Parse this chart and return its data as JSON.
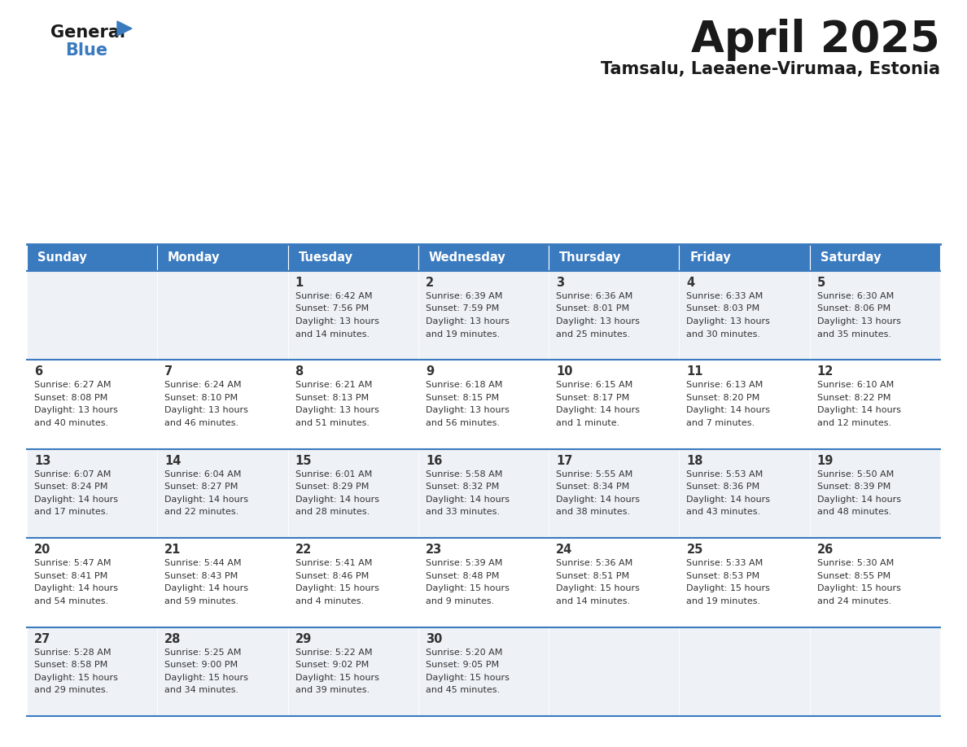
{
  "title": "April 2025",
  "subtitle": "Tamsalu, Laeaene-Virumaa, Estonia",
  "days_of_week": [
    "Sunday",
    "Monday",
    "Tuesday",
    "Wednesday",
    "Thursday",
    "Friday",
    "Saturday"
  ],
  "header_bg_color": "#3a7abf",
  "header_text_color": "#ffffff",
  "row_bg_color_odd": "#eef2f7",
  "row_bg_color_even": "#ffffff",
  "cell_border_color": "#3a7abf",
  "title_color": "#1a1a1a",
  "subtitle_color": "#1a1a1a",
  "text_color": "#333333",
  "logo_general_color": "#1a1a1a",
  "logo_blue_color": "#3a7abf",
  "calendar_data": [
    [
      {
        "day": "",
        "info": ""
      },
      {
        "day": "",
        "info": ""
      },
      {
        "day": "1",
        "info": "Sunrise: 6:42 AM\nSunset: 7:56 PM\nDaylight: 13 hours\nand 14 minutes."
      },
      {
        "day": "2",
        "info": "Sunrise: 6:39 AM\nSunset: 7:59 PM\nDaylight: 13 hours\nand 19 minutes."
      },
      {
        "day": "3",
        "info": "Sunrise: 6:36 AM\nSunset: 8:01 PM\nDaylight: 13 hours\nand 25 minutes."
      },
      {
        "day": "4",
        "info": "Sunrise: 6:33 AM\nSunset: 8:03 PM\nDaylight: 13 hours\nand 30 minutes."
      },
      {
        "day": "5",
        "info": "Sunrise: 6:30 AM\nSunset: 8:06 PM\nDaylight: 13 hours\nand 35 minutes."
      }
    ],
    [
      {
        "day": "6",
        "info": "Sunrise: 6:27 AM\nSunset: 8:08 PM\nDaylight: 13 hours\nand 40 minutes."
      },
      {
        "day": "7",
        "info": "Sunrise: 6:24 AM\nSunset: 8:10 PM\nDaylight: 13 hours\nand 46 minutes."
      },
      {
        "day": "8",
        "info": "Sunrise: 6:21 AM\nSunset: 8:13 PM\nDaylight: 13 hours\nand 51 minutes."
      },
      {
        "day": "9",
        "info": "Sunrise: 6:18 AM\nSunset: 8:15 PM\nDaylight: 13 hours\nand 56 minutes."
      },
      {
        "day": "10",
        "info": "Sunrise: 6:15 AM\nSunset: 8:17 PM\nDaylight: 14 hours\nand 1 minute."
      },
      {
        "day": "11",
        "info": "Sunrise: 6:13 AM\nSunset: 8:20 PM\nDaylight: 14 hours\nand 7 minutes."
      },
      {
        "day": "12",
        "info": "Sunrise: 6:10 AM\nSunset: 8:22 PM\nDaylight: 14 hours\nand 12 minutes."
      }
    ],
    [
      {
        "day": "13",
        "info": "Sunrise: 6:07 AM\nSunset: 8:24 PM\nDaylight: 14 hours\nand 17 minutes."
      },
      {
        "day": "14",
        "info": "Sunrise: 6:04 AM\nSunset: 8:27 PM\nDaylight: 14 hours\nand 22 minutes."
      },
      {
        "day": "15",
        "info": "Sunrise: 6:01 AM\nSunset: 8:29 PM\nDaylight: 14 hours\nand 28 minutes."
      },
      {
        "day": "16",
        "info": "Sunrise: 5:58 AM\nSunset: 8:32 PM\nDaylight: 14 hours\nand 33 minutes."
      },
      {
        "day": "17",
        "info": "Sunrise: 5:55 AM\nSunset: 8:34 PM\nDaylight: 14 hours\nand 38 minutes."
      },
      {
        "day": "18",
        "info": "Sunrise: 5:53 AM\nSunset: 8:36 PM\nDaylight: 14 hours\nand 43 minutes."
      },
      {
        "day": "19",
        "info": "Sunrise: 5:50 AM\nSunset: 8:39 PM\nDaylight: 14 hours\nand 48 minutes."
      }
    ],
    [
      {
        "day": "20",
        "info": "Sunrise: 5:47 AM\nSunset: 8:41 PM\nDaylight: 14 hours\nand 54 minutes."
      },
      {
        "day": "21",
        "info": "Sunrise: 5:44 AM\nSunset: 8:43 PM\nDaylight: 14 hours\nand 59 minutes."
      },
      {
        "day": "22",
        "info": "Sunrise: 5:41 AM\nSunset: 8:46 PM\nDaylight: 15 hours\nand 4 minutes."
      },
      {
        "day": "23",
        "info": "Sunrise: 5:39 AM\nSunset: 8:48 PM\nDaylight: 15 hours\nand 9 minutes."
      },
      {
        "day": "24",
        "info": "Sunrise: 5:36 AM\nSunset: 8:51 PM\nDaylight: 15 hours\nand 14 minutes."
      },
      {
        "day": "25",
        "info": "Sunrise: 5:33 AM\nSunset: 8:53 PM\nDaylight: 15 hours\nand 19 minutes."
      },
      {
        "day": "26",
        "info": "Sunrise: 5:30 AM\nSunset: 8:55 PM\nDaylight: 15 hours\nand 24 minutes."
      }
    ],
    [
      {
        "day": "27",
        "info": "Sunrise: 5:28 AM\nSunset: 8:58 PM\nDaylight: 15 hours\nand 29 minutes."
      },
      {
        "day": "28",
        "info": "Sunrise: 5:25 AM\nSunset: 9:00 PM\nDaylight: 15 hours\nand 34 minutes."
      },
      {
        "day": "29",
        "info": "Sunrise: 5:22 AM\nSunset: 9:02 PM\nDaylight: 15 hours\nand 39 minutes."
      },
      {
        "day": "30",
        "info": "Sunrise: 5:20 AM\nSunset: 9:05 PM\nDaylight: 15 hours\nand 45 minutes."
      },
      {
        "day": "",
        "info": ""
      },
      {
        "day": "",
        "info": ""
      },
      {
        "day": "",
        "info": ""
      }
    ]
  ]
}
